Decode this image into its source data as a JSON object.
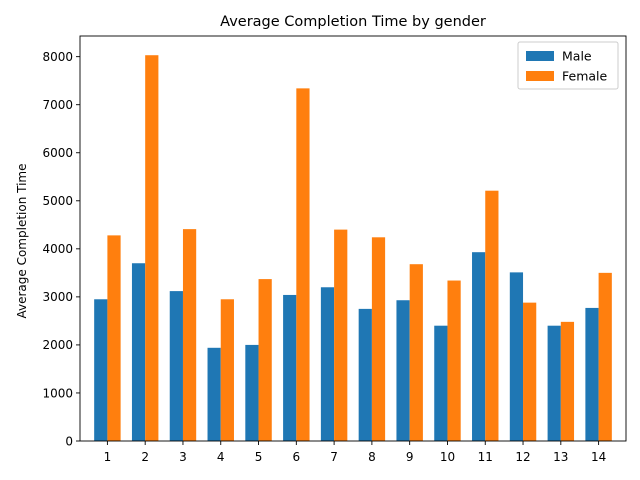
{
  "chart_data": {
    "type": "bar",
    "title": "Average Completion Time by gender",
    "xlabel": "",
    "ylabel": "Average Completion Time",
    "categories": [
      "1",
      "2",
      "3",
      "4",
      "5",
      "6",
      "7",
      "8",
      "9",
      "10",
      "11",
      "12",
      "13",
      "14"
    ],
    "series": [
      {
        "name": "Male",
        "color": "#1f77b4",
        "values": [
          2950,
          3700,
          3120,
          1940,
          2000,
          3040,
          3200,
          2750,
          2930,
          2400,
          3930,
          3510,
          2400,
          2770
        ]
      },
      {
        "name": "Female",
        "color": "#ff7f0e",
        "values": [
          4280,
          8030,
          4410,
          2950,
          3370,
          7340,
          4400,
          4240,
          3680,
          3340,
          5210,
          2880,
          2480,
          3500
        ]
      }
    ],
    "yticks": [
      0,
      1000,
      2000,
      3000,
      4000,
      5000,
      6000,
      7000,
      8000
    ],
    "ylim": [
      0,
      8430
    ],
    "grid": false,
    "legend_position": "top-right"
  }
}
